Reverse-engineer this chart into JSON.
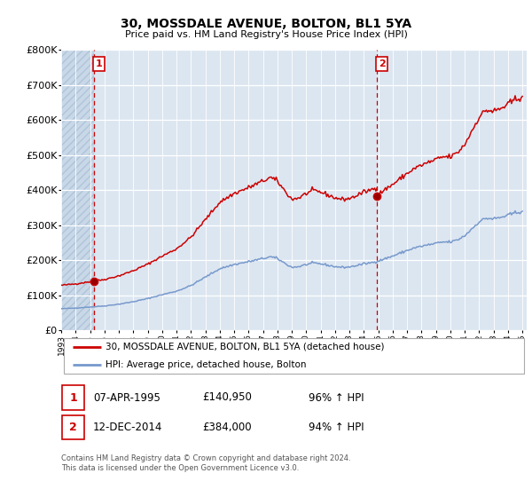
{
  "title": "30, MOSSDALE AVENUE, BOLTON, BL1 5YA",
  "subtitle": "Price paid vs. HM Land Registry's House Price Index (HPI)",
  "legend_line1": "30, MOSSDALE AVENUE, BOLTON, BL1 5YA (detached house)",
  "legend_line2": "HPI: Average price, detached house, Bolton",
  "annotation1_date": "07-APR-1995",
  "annotation1_price": "£140,950",
  "annotation1_hpi": "96% ↑ HPI",
  "annotation2_date": "12-DEC-2014",
  "annotation2_price": "£384,000",
  "annotation2_hpi": "94% ↑ HPI",
  "footnote": "Contains HM Land Registry data © Crown copyright and database right 2024.\nThis data is licensed under the Open Government Licence v3.0.",
  "line_color": "#cc0000",
  "hpi_color": "#7799cc",
  "vline_color": "#cc0000",
  "ylim": [
    0,
    800000
  ],
  "yticks": [
    0,
    100000,
    200000,
    300000,
    400000,
    500000,
    600000,
    700000,
    800000
  ],
  "ytick_labels": [
    "£0",
    "£100K",
    "£200K",
    "£300K",
    "£400K",
    "£500K",
    "£600K",
    "£700K",
    "£800K"
  ],
  "bg_color": "#dce6f1",
  "grid_color": "#ffffff",
  "sale1_year": 1995.27,
  "sale1_price": 140950,
  "sale2_year": 2014.92,
  "sale2_price": 384000
}
